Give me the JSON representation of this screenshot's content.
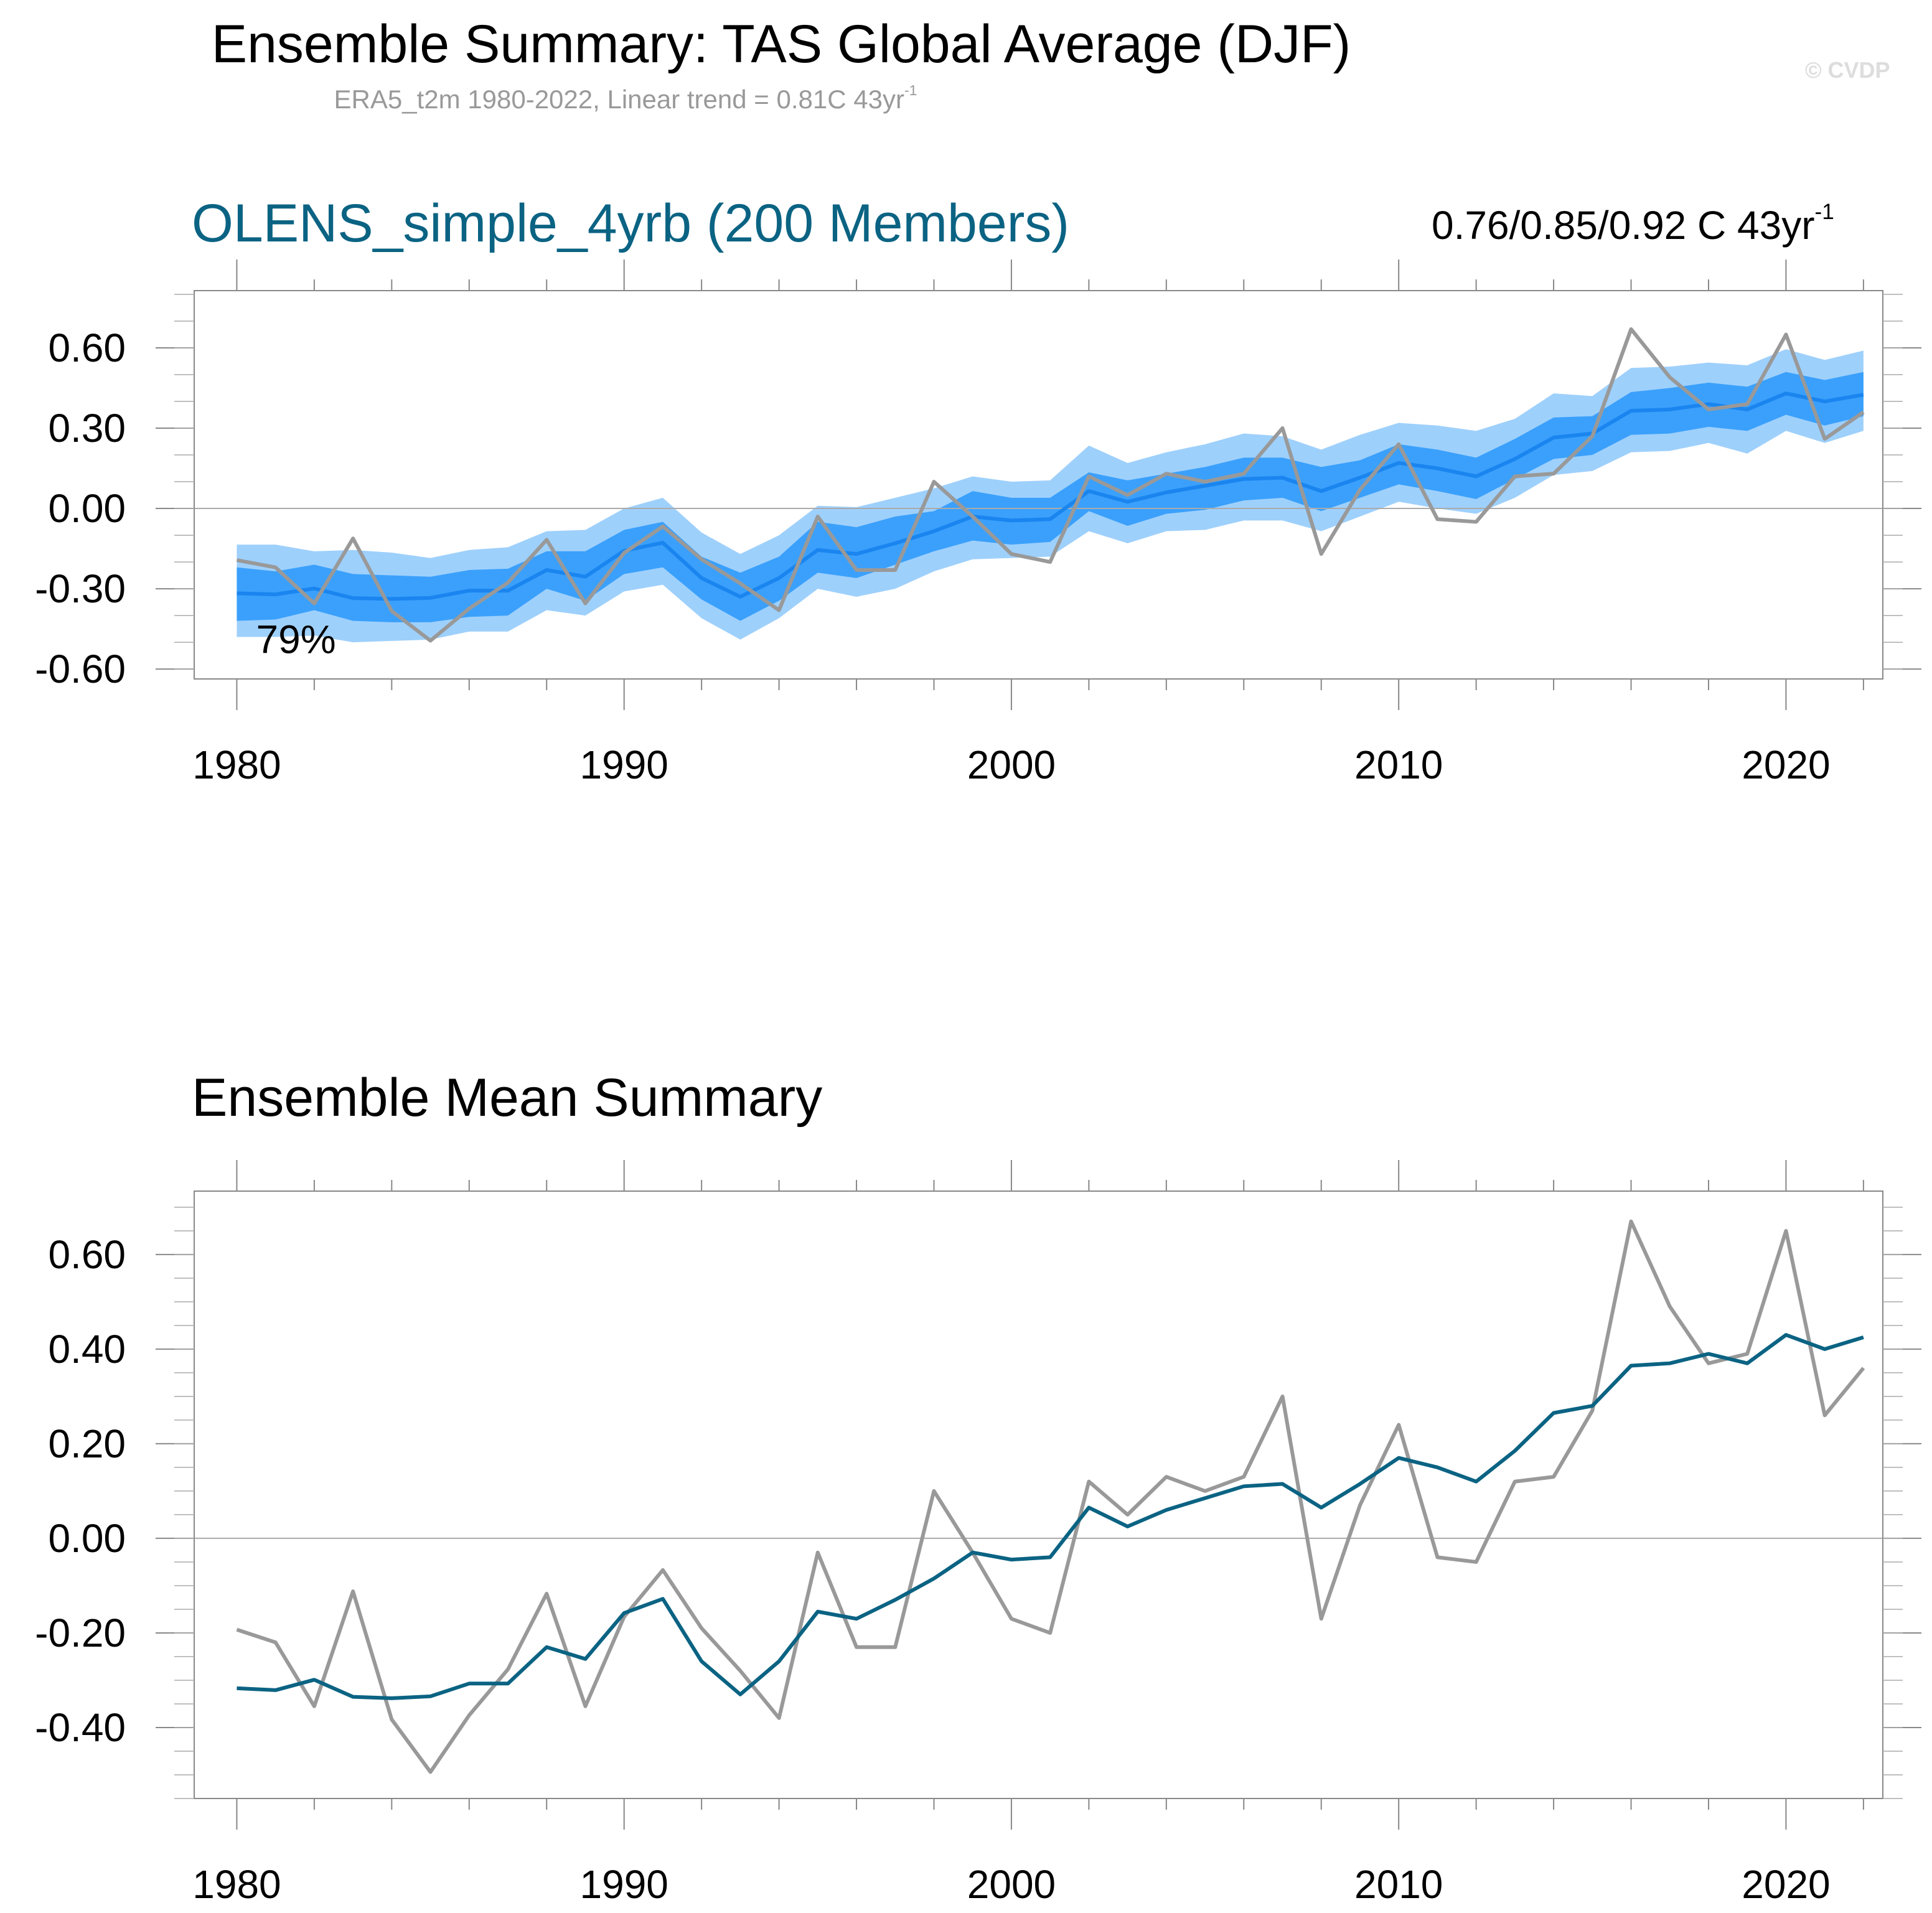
{
  "header": {
    "title": "Ensemble Summary: TAS Global Average (DJF)",
    "subtitle": "ERA5_t2m 1980-2022, Linear trend = 0.81C 43yr",
    "subtitle_sup": "-1",
    "watermark": "© CVDP"
  },
  "colors": {
    "outer_band": "#9ed0fc",
    "inner_band": "#3aa0fc",
    "ensemble_mean_top": "#1a85ef",
    "ensemble_mean_bottom": "#0b6383",
    "observations": "#999999",
    "panel1_title": "#0b6383"
  },
  "chart_data": [
    {
      "type": "area",
      "title": "OLENS_simple_4yrb (200 Members)",
      "trend_range": "0.76/0.85/0.92 C 43yr",
      "trend_range_sup": "-1",
      "annotation": "79%",
      "xlabel": "",
      "ylabel": "",
      "xlim": [
        1978.9,
        2022.5
      ],
      "ylim": [
        -0.637,
        0.814
      ],
      "xticks": [
        1980,
        1990,
        2000,
        2010,
        2020
      ],
      "xtick_labels": [
        "1980",
        "1990",
        "2000",
        "2010",
        "2020"
      ],
      "yticks": [
        -0.6,
        -0.3,
        0.0,
        0.3,
        0.6
      ],
      "ytick_labels": [
        "-0.60",
        "-0.30",
        "0.00",
        "0.30",
        "0.60"
      ],
      "zero_line": true,
      "x": [
        1980,
        1981,
        1982,
        1983,
        1984,
        1985,
        1986,
        1987,
        1988,
        1989,
        1990,
        1991,
        1992,
        1993,
        1994,
        1995,
        1996,
        1997,
        1998,
        1999,
        2000,
        2001,
        2002,
        2003,
        2004,
        2005,
        2006,
        2007,
        2008,
        2009,
        2010,
        2011,
        2012,
        2013,
        2014,
        2015,
        2016,
        2017,
        2018,
        2019,
        2020,
        2021,
        2022
      ],
      "series": [
        {
          "name": "ensemble_mean",
          "values": [
            -0.317,
            -0.321,
            -0.299,
            -0.335,
            -0.338,
            -0.334,
            -0.307,
            -0.307,
            -0.23,
            -0.255,
            -0.158,
            -0.128,
            -0.26,
            -0.33,
            -0.26,
            -0.155,
            -0.17,
            -0.13,
            -0.085,
            -0.03,
            -0.045,
            -0.04,
            0.065,
            0.025,
            0.06,
            0.085,
            0.11,
            0.115,
            0.065,
            0.115,
            0.17,
            0.15,
            0.12,
            0.185,
            0.265,
            0.28,
            0.365,
            0.37,
            0.39,
            0.37,
            0.43,
            0.4,
            0.425
          ]
        },
        {
          "name": "inner_band_upper",
          "values": [
            -0.22,
            -0.235,
            -0.21,
            -0.245,
            -0.25,
            -0.255,
            -0.23,
            -0.225,
            -0.16,
            -0.16,
            -0.08,
            -0.05,
            -0.18,
            -0.24,
            -0.18,
            -0.05,
            -0.07,
            -0.03,
            -0.01,
            0.065,
            0.04,
            0.04,
            0.135,
            0.105,
            0.13,
            0.155,
            0.19,
            0.19,
            0.155,
            0.18,
            0.24,
            0.22,
            0.19,
            0.26,
            0.34,
            0.345,
            0.435,
            0.45,
            0.47,
            0.455,
            0.51,
            0.48,
            0.51
          ]
        },
        {
          "name": "inner_band_lower",
          "values": [
            -0.42,
            -0.415,
            -0.38,
            -0.42,
            -0.425,
            -0.425,
            -0.405,
            -0.4,
            -0.3,
            -0.345,
            -0.245,
            -0.22,
            -0.34,
            -0.42,
            -0.345,
            -0.24,
            -0.26,
            -0.21,
            -0.16,
            -0.12,
            -0.135,
            -0.125,
            -0.01,
            -0.065,
            -0.02,
            -0.005,
            0.03,
            0.04,
            -0.01,
            0.04,
            0.09,
            0.065,
            0.035,
            0.11,
            0.185,
            0.2,
            0.275,
            0.28,
            0.305,
            0.29,
            0.35,
            0.31,
            0.345
          ]
        },
        {
          "name": "outer_band_upper",
          "values": [
            -0.135,
            -0.135,
            -0.16,
            -0.155,
            -0.165,
            -0.185,
            -0.155,
            -0.145,
            -0.085,
            -0.08,
            0.0,
            0.04,
            -0.09,
            -0.17,
            -0.1,
            0.01,
            0.005,
            0.04,
            0.075,
            0.12,
            0.1,
            0.105,
            0.235,
            0.17,
            0.21,
            0.24,
            0.28,
            0.27,
            0.22,
            0.275,
            0.32,
            0.31,
            0.29,
            0.335,
            0.43,
            0.42,
            0.525,
            0.53,
            0.545,
            0.535,
            0.595,
            0.555,
            0.59
          ]
        },
        {
          "name": "outer_band_lower",
          "values": [
            -0.48,
            -0.48,
            -0.475,
            -0.5,
            -0.495,
            -0.49,
            -0.46,
            -0.46,
            -0.38,
            -0.4,
            -0.31,
            -0.285,
            -0.41,
            -0.49,
            -0.41,
            -0.3,
            -0.33,
            -0.3,
            -0.235,
            -0.19,
            -0.185,
            -0.18,
            -0.085,
            -0.13,
            -0.085,
            -0.08,
            -0.045,
            -0.045,
            -0.085,
            -0.03,
            0.025,
            0.0,
            -0.02,
            0.04,
            0.125,
            0.14,
            0.21,
            0.215,
            0.245,
            0.205,
            0.29,
            0.245,
            0.29
          ]
        },
        {
          "name": "observations",
          "values": [
            -0.193,
            -0.22,
            -0.355,
            -0.112,
            -0.383,
            -0.494,
            -0.374,
            -0.277,
            -0.117,
            -0.355,
            -0.166,
            -0.067,
            -0.19,
            -0.28,
            -0.38,
            -0.03,
            -0.23,
            -0.23,
            0.1,
            -0.03,
            -0.17,
            -0.2,
            0.12,
            0.05,
            0.13,
            0.1,
            0.13,
            0.3,
            -0.17,
            0.07,
            0.24,
            -0.04,
            -0.05,
            0.12,
            0.13,
            0.27,
            0.67,
            0.49,
            0.37,
            0.39,
            0.65,
            0.26,
            0.36
          ]
        }
      ]
    },
    {
      "type": "line",
      "title": "Ensemble Mean Summary",
      "xlabel": "",
      "ylabel": "",
      "xlim": [
        1978.9,
        2022.5
      ],
      "ylim": [
        -0.55,
        0.734
      ],
      "xticks": [
        1980,
        1990,
        2000,
        2010,
        2020
      ],
      "xtick_labels": [
        "1980",
        "1990",
        "2000",
        "2010",
        "2020"
      ],
      "yticks": [
        -0.4,
        -0.2,
        0.0,
        0.2,
        0.4,
        0.6
      ],
      "ytick_labels": [
        "-0.40",
        "-0.20",
        "0.00",
        "0.20",
        "0.40",
        "0.60"
      ],
      "zero_line": true,
      "x": [
        1980,
        1981,
        1982,
        1983,
        1984,
        1985,
        1986,
        1987,
        1988,
        1989,
        1990,
        1991,
        1992,
        1993,
        1994,
        1995,
        1996,
        1997,
        1998,
        1999,
        2000,
        2001,
        2002,
        2003,
        2004,
        2005,
        2006,
        2007,
        2008,
        2009,
        2010,
        2011,
        2012,
        2013,
        2014,
        2015,
        2016,
        2017,
        2018,
        2019,
        2020,
        2021,
        2022
      ],
      "series": [
        {
          "name": "observations",
          "values": [
            -0.193,
            -0.22,
            -0.355,
            -0.112,
            -0.383,
            -0.494,
            -0.374,
            -0.277,
            -0.117,
            -0.355,
            -0.166,
            -0.067,
            -0.19,
            -0.28,
            -0.38,
            -0.03,
            -0.23,
            -0.23,
            0.1,
            -0.03,
            -0.17,
            -0.2,
            0.12,
            0.05,
            0.13,
            0.1,
            0.13,
            0.3,
            -0.17,
            0.07,
            0.24,
            -0.04,
            -0.05,
            0.12,
            0.13,
            0.27,
            0.67,
            0.49,
            0.37,
            0.39,
            0.65,
            0.26,
            0.36
          ]
        },
        {
          "name": "ensemble_mean",
          "values": [
            -0.317,
            -0.321,
            -0.299,
            -0.335,
            -0.338,
            -0.334,
            -0.307,
            -0.307,
            -0.23,
            -0.255,
            -0.158,
            -0.128,
            -0.26,
            -0.33,
            -0.26,
            -0.155,
            -0.17,
            -0.13,
            -0.085,
            -0.03,
            -0.045,
            -0.04,
            0.065,
            0.025,
            0.06,
            0.085,
            0.11,
            0.115,
            0.065,
            0.115,
            0.17,
            0.15,
            0.12,
            0.185,
            0.265,
            0.28,
            0.365,
            0.37,
            0.39,
            0.37,
            0.43,
            0.4,
            0.425
          ]
        }
      ]
    }
  ]
}
